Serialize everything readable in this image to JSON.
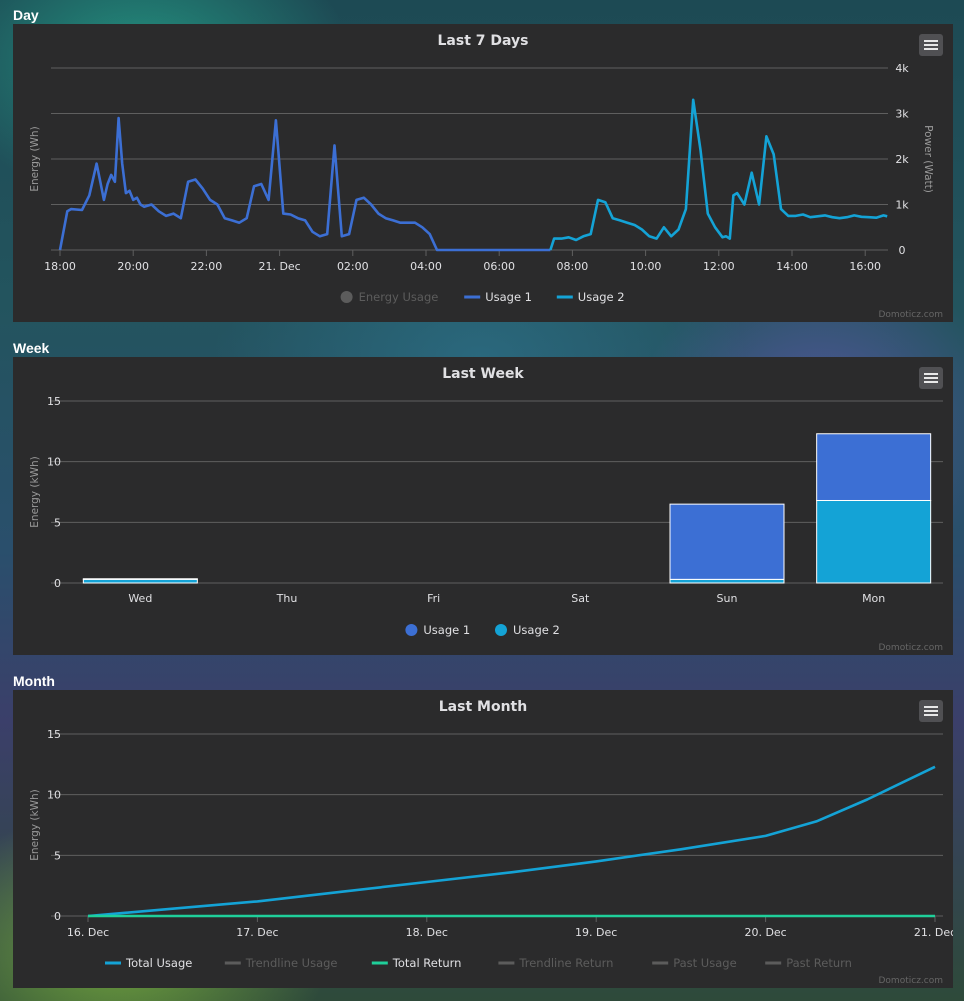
{
  "sections": {
    "day": "Day",
    "week": "Week",
    "month": "Month"
  },
  "credit": "Domoticz.com",
  "colors": {
    "usage1": "#3c6fd4",
    "usage2": "#14a3d6",
    "return": "#1fcf9a",
    "disabled": "#5c5c5c",
    "grid": "#5f5f5f",
    "text": "#e0e0e3"
  },
  "icons": {
    "menu": "hamburger-menu-icon"
  },
  "day_chart": {
    "type": "line",
    "title": "Last 7 Days",
    "ylabel_left": "Energy (Wh)",
    "ylabel_right": "Power (Watt)",
    "y_right_ticks": [
      "0",
      "1k",
      "2k",
      "3k",
      "4k"
    ],
    "x_ticks": [
      "18:00",
      "20:00",
      "22:00",
      "21. Dec",
      "02:00",
      "04:00",
      "06:00",
      "08:00",
      "10:00",
      "12:00",
      "14:00",
      "16:00"
    ],
    "legend": [
      "Energy Usage",
      "Usage 1",
      "Usage 2"
    ],
    "series": [
      {
        "name": "Usage 1",
        "x_hours": [
          -0.3,
          -0.1,
          0,
          0.3,
          0.5,
          0.7,
          0.8,
          0.9,
          1.0,
          1.1,
          1.2,
          1.3,
          1.4,
          1.5,
          1.6,
          1.7,
          1.8,
          1.9,
          2.0,
          2.2,
          2.4,
          2.6,
          2.8,
          3.0,
          3.2,
          3.4,
          3.6,
          3.8,
          4.0,
          4.2,
          4.4,
          4.6,
          4.8,
          5.0,
          5.2,
          5.4,
          5.6,
          5.8,
          6.0,
          6.2,
          6.4,
          6.6,
          6.8,
          7.0,
          7.2,
          7.4,
          7.6,
          7.8,
          8.0,
          8.2,
          8.4,
          8.6,
          8.8,
          9.0,
          9.2,
          9.4,
          9.6,
          9.8,
          10.0,
          10.2,
          10.4,
          10.6,
          10.8,
          11.0,
          11.2,
          11.4,
          11.6,
          11.8,
          12.0,
          12.2,
          12.4,
          12.6,
          12.8,
          13.0,
          13.1
        ],
        "y_w": [
          0,
          850,
          900,
          880,
          1200,
          1900,
          1500,
          1100,
          1450,
          1650,
          1500,
          2900,
          1900,
          1250,
          1300,
          1100,
          1150,
          1000,
          950,
          1000,
          850,
          750,
          800,
          700,
          1500,
          1550,
          1350,
          1100,
          1000,
          700,
          650,
          600,
          700,
          1400,
          1450,
          1100,
          2850,
          800,
          780,
          700,
          650,
          400,
          300,
          350,
          2300,
          300,
          350,
          1100,
          1150,
          1000,
          800,
          700,
          650,
          600,
          600,
          600,
          500,
          350,
          0,
          0,
          0,
          0,
          0,
          0,
          0,
          0,
          0,
          0,
          0,
          0,
          0,
          0,
          0,
          0,
          0
        ]
      },
      {
        "name": "Usage 2",
        "x_hours": [
          13.1,
          13.2,
          13.4,
          13.6,
          13.8,
          14.0,
          14.2,
          14.4,
          14.6,
          14.8,
          15.0,
          15.2,
          15.4,
          15.6,
          15.8,
          16.0,
          16.2,
          16.4,
          16.6,
          16.8,
          17.0,
          17.2,
          17.4,
          17.6,
          17.8,
          17.9,
          18.0,
          18.1,
          18.2,
          18.4,
          18.6,
          18.8,
          19.0,
          19.2,
          19.4,
          19.6,
          19.8,
          20.0,
          20.2,
          20.4,
          20.6,
          20.8,
          21.0,
          21.2,
          21.4,
          21.6,
          21.8,
          22.0,
          22.2,
          22.3
        ],
        "y_w": [
          0,
          250,
          250,
          280,
          220,
          300,
          350,
          1100,
          1050,
          700,
          650,
          600,
          550,
          450,
          300,
          250,
          500,
          300,
          450,
          900,
          3300,
          2200,
          800,
          500,
          280,
          300,
          250,
          1200,
          1250,
          1000,
          1700,
          1000,
          2500,
          2100,
          900,
          750,
          750,
          780,
          720,
          740,
          760,
          720,
          700,
          720,
          760,
          730,
          720,
          710,
          760,
          740
        ]
      }
    ]
  },
  "week_chart": {
    "type": "bar",
    "title": "Last Week",
    "ylabel": "Energy (kWh)",
    "ylim": [
      0,
      15
    ],
    "y_ticks": [
      "0",
      "5",
      "10",
      "15"
    ],
    "categories": [
      "Wed",
      "Thu",
      "Fri",
      "Sat",
      "Sun",
      "Mon"
    ],
    "legend": [
      "Usage 1",
      "Usage 2"
    ],
    "series": [
      {
        "name": "Usage 1",
        "values": [
          0.05,
          0,
          0,
          0,
          6.2,
          5.5
        ]
      },
      {
        "name": "Usage 2",
        "values": [
          0.3,
          0,
          0,
          0,
          0.3,
          6.8
        ]
      }
    ]
  },
  "month_chart": {
    "type": "line",
    "title": "Last Month",
    "ylabel": "Energy (kWh)",
    "ylim": [
      0,
      15
    ],
    "y_ticks": [
      "0",
      "5",
      "10",
      "15"
    ],
    "x_ticks": [
      "16. Dec",
      "17. Dec",
      "18. Dec",
      "19. Dec",
      "20. Dec",
      "21. Dec"
    ],
    "legend": [
      "Total Usage",
      "Trendline Usage",
      "Total Return",
      "Trendline Return",
      "Past Usage",
      "Past Return"
    ],
    "series": [
      {
        "name": "Total Usage",
        "x_days": [
          0,
          0.5,
          1,
          1.5,
          2,
          2.5,
          3,
          3.5,
          4,
          4.3,
          4.6,
          5
        ],
        "values": [
          0,
          0.6,
          1.2,
          2.0,
          2.8,
          3.6,
          4.5,
          5.5,
          6.6,
          7.8,
          9.6,
          12.3
        ]
      },
      {
        "name": "Total Return",
        "x_days": [
          0,
          5
        ],
        "values": [
          0,
          0
        ]
      }
    ]
  }
}
